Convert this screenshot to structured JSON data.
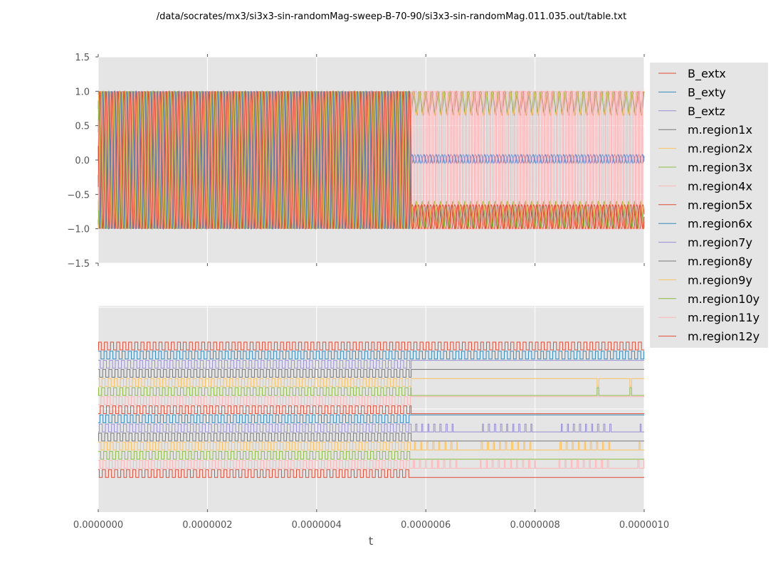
{
  "figure": {
    "title": "/data/socrates/mx3/si3x3-sin-randomMag-sweep-B-70-90/si3x3-sin-randomMag.011.035.out/table.txt"
  },
  "chart_data": [
    {
      "type": "line",
      "title": "",
      "xlabel": "",
      "ylabel": "",
      "xlim": [
        0,
        1e-06
      ],
      "ylim": [
        -1.5,
        1.5
      ],
      "grid": true,
      "legend": "outside-right",
      "y_ticks": [
        "1.5",
        "1.0",
        "0.5",
        "0.0",
        "−0.5",
        "−1.0",
        "−1.5"
      ],
      "y_tick_values": [
        1.5,
        1.0,
        0.5,
        0.0,
        -0.5,
        -1.0,
        -1.5
      ],
      "switch_time": 5.73e-07,
      "oscillation_periods_per_us": 90,
      "series": [
        {
          "name": "B_extx",
          "color": "#e24a33",
          "phase1": "oscillating -1 to 1",
          "phase2": "oscillating -1 to -0.65"
        },
        {
          "name": "B_exty",
          "color": "#348abd",
          "phase1": "oscillating -1 to 1",
          "phase2": "oscillating -0.05 to 0.08"
        },
        {
          "name": "B_extz",
          "color": "#988ed5",
          "phase1": "oscillating -1 to 1",
          "phase2": "oscillating -0.05 to 0.08"
        },
        {
          "name": "m.region1x",
          "color": "#777777",
          "phase1": "oscillating -1 to 1",
          "phase2": "oscillating 0.65 to 1"
        },
        {
          "name": "m.region2x",
          "color": "#fbc15e",
          "phase1": "oscillating -1 to 1",
          "phase2": "oscillating 0.65 to 1"
        },
        {
          "name": "m.region3x",
          "color": "#8eba42",
          "phase1": "oscillating -1 to 1",
          "phase2": "oscillating 0.7 to 1"
        },
        {
          "name": "m.region4x",
          "color": "#ffb5b8",
          "phase1": "oscillating -1 to 1",
          "phase2": "switching -1 to 1"
        },
        {
          "name": "m.region5x",
          "color": "#e24a33",
          "phase1": "oscillating -1 to 1",
          "phase2": "oscillating -1 to -0.65"
        },
        {
          "name": "m.region6x",
          "color": "#348abd",
          "phase1": "oscillating -1 to 1",
          "phase2": "oscillating -0.05 to 0.08"
        },
        {
          "name": "m.region7y",
          "color": "#988ed5",
          "phase1": "oscillating -1 to 1",
          "phase2": "oscillating -0.05 to 0.08"
        },
        {
          "name": "m.region8y",
          "color": "#777777",
          "phase1": "oscillating -1 to 1",
          "phase2": "oscillating -1 to -0.65"
        },
        {
          "name": "m.region9y",
          "color": "#fbc15e",
          "phase1": "oscillating -1 to 1",
          "phase2": "oscillating -1 to -0.6"
        },
        {
          "name": "m.region10y",
          "color": "#8eba42",
          "phase1": "oscillating -1 to 1",
          "phase2": "oscillating -1 to -0.6"
        },
        {
          "name": "m.region11y",
          "color": "#ffb5b8",
          "phase1": "oscillating -1 to 1",
          "phase2": "switching -1 to 1"
        },
        {
          "name": "m.region12y",
          "color": "#e24a33",
          "phase1": "oscillating -1 to 1",
          "phase2": "oscillating -1 to -0.65"
        }
      ]
    },
    {
      "type": "line",
      "title": "",
      "xlabel": "t",
      "ylabel": "",
      "xlim": [
        0,
        1e-06
      ],
      "grid": true,
      "x_ticks": [
        "0.0000000",
        "0.0000002",
        "0.0000004",
        "0.0000006",
        "0.0000008",
        "0.0000010"
      ],
      "x_tick_values": [
        0,
        2e-07,
        4e-07,
        6e-07,
        8e-07,
        1e-06
      ],
      "description": "digital (binary) traces, stacked",
      "traces": [
        {
          "color": "#e24a33",
          "pattern": "square wave full range"
        },
        {
          "color": "#348abd",
          "pattern": "square wave full range"
        },
        {
          "color": "#988ed5",
          "pattern": "square wave then constant high",
          "switch_time": 5.73e-07
        },
        {
          "color": "#777777",
          "pattern": "square wave then constant high",
          "switch_time": 5.73e-07
        },
        {
          "color": "#fbc15e",
          "pattern": "square wave then constant high with spikes",
          "switch_time": 5.73e-07,
          "spikes": [
            9.15e-07,
            9.75e-07
          ]
        },
        {
          "color": "#8eba42",
          "pattern": "square wave then constant low with spikes",
          "switch_time": 5.73e-07,
          "spikes": [
            9.15e-07,
            9.75e-07
          ]
        },
        {
          "color": "#ffb5b8",
          "pattern": "square wave then constant high",
          "switch_time": 5.73e-07
        },
        {
          "color": "#e24a33",
          "pattern": "square wave then constant low",
          "switch_time": 5.73e-07
        },
        {
          "color": "#348abd",
          "pattern": "square wave then constant high",
          "switch_time": 5.73e-07
        },
        {
          "color": "#988ed5",
          "pattern": "square wave then sparse pulses",
          "switch_time": 5.73e-07
        },
        {
          "color": "#777777",
          "pattern": "square wave then constant low",
          "switch_time": 5.73e-07
        },
        {
          "color": "#fbc15e",
          "pattern": "square wave then sparse pulses",
          "switch_time": 5.73e-07
        },
        {
          "color": "#8eba42",
          "pattern": "square wave then constant low",
          "switch_time": 5.73e-07
        },
        {
          "color": "#ffb5b8",
          "pattern": "square wave then sparse pulses",
          "switch_time": 5.73e-07
        },
        {
          "color": "#e24a33",
          "pattern": "square wave then constant low",
          "switch_time": 5.73e-07
        }
      ]
    }
  ]
}
